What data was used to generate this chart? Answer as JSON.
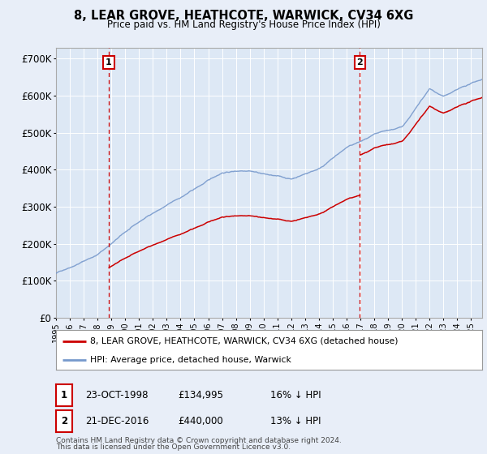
{
  "title": "8, LEAR GROVE, HEATHCOTE, WARWICK, CV34 6XG",
  "subtitle": "Price paid vs. HM Land Registry's House Price Index (HPI)",
  "ylim": [
    0,
    730000
  ],
  "xlim_start": 1995.0,
  "xlim_end": 2025.8,
  "sale1_date": 1998.81,
  "sale1_price": 134995,
  "sale1_label": "1",
  "sale2_date": 2016.97,
  "sale2_price": 440000,
  "sale2_label": "2",
  "legend_property": "8, LEAR GROVE, HEATHCOTE, WARWICK, CV34 6XG (detached house)",
  "legend_hpi": "HPI: Average price, detached house, Warwick",
  "property_color": "#cc0000",
  "hpi_color": "#7799cc",
  "background_color": "#e8eef8",
  "plot_bg_color": "#dde8f5",
  "vline_color": "#cc0000",
  "grid_color": "#ffffff",
  "footnote1": "Contains HM Land Registry data © Crown copyright and database right 2024.",
  "footnote2": "This data is licensed under the Open Government Licence v3.0."
}
